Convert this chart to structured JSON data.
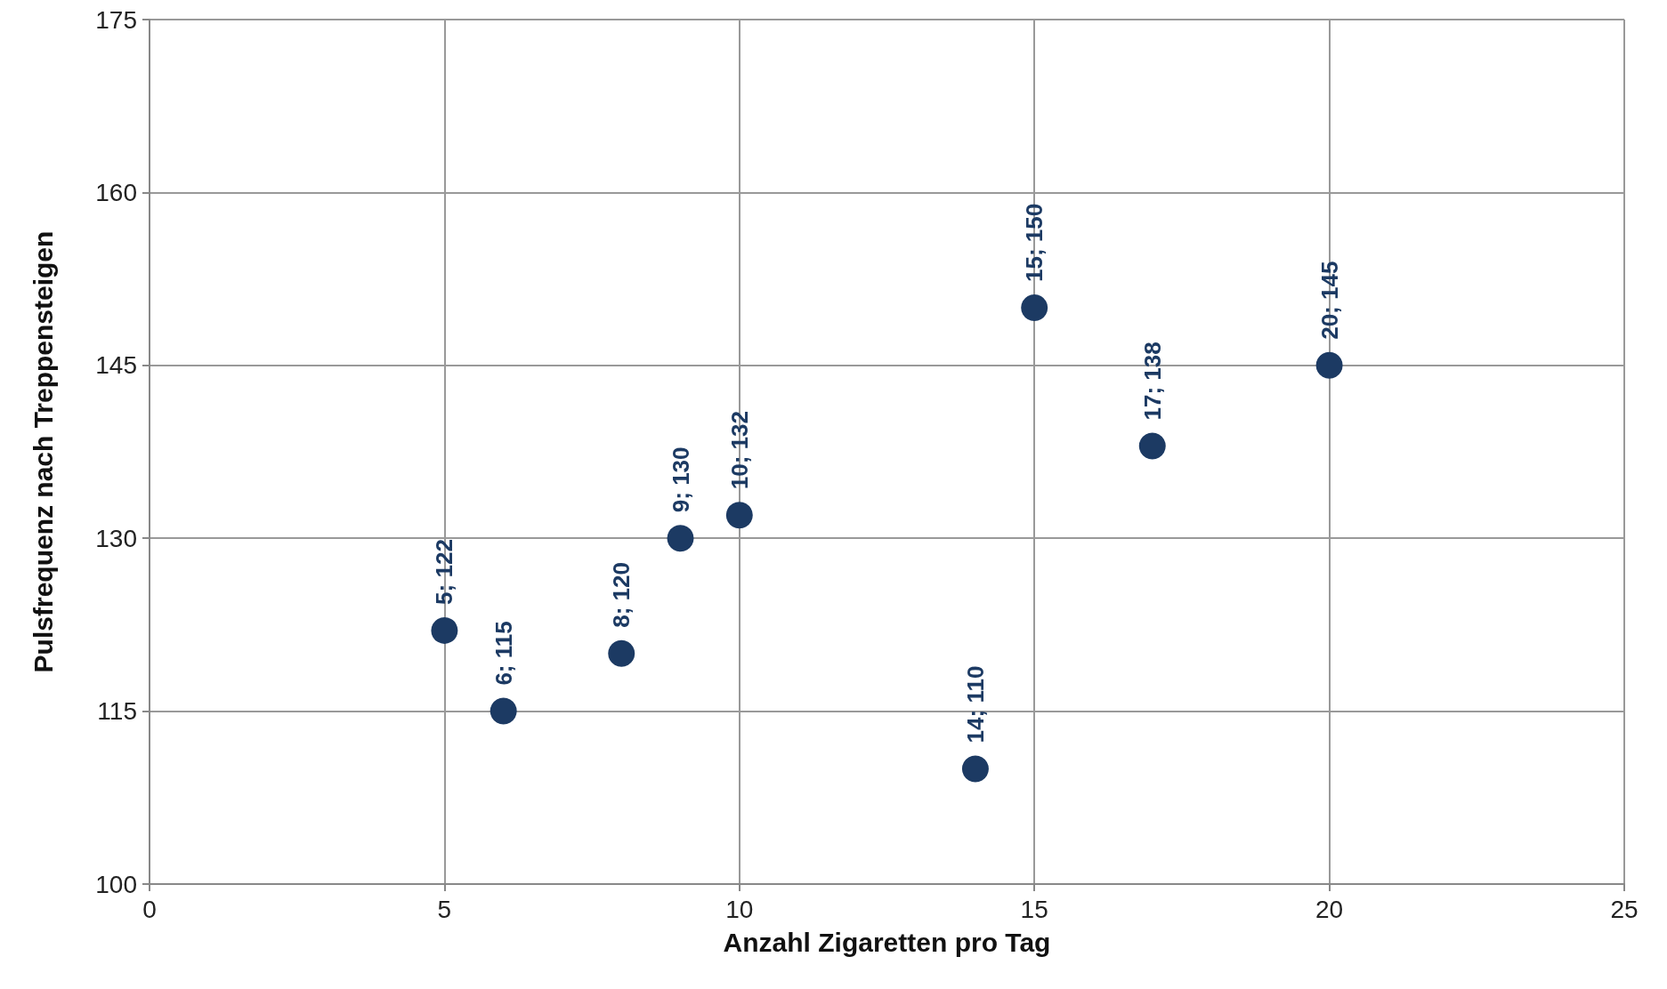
{
  "chart_data": {
    "type": "scatter",
    "xlabel": "Anzahl Zigaretten pro Tag",
    "ylabel": "Pulsfrequenz nach Treppensteigen",
    "x": [
      5,
      6,
      8,
      9,
      10,
      14,
      15,
      17,
      20
    ],
    "series": [
      {
        "color": "#1c3a63",
        "values": [
          122,
          115,
          120,
          130,
          132,
          110,
          150,
          138,
          145
        ],
        "value_labels": [
          "5; 122",
          "6; 115",
          "8; 120",
          "9; 130",
          "10; 132",
          "14; 110",
          "15; 150",
          "17; 138",
          "20; 145"
        ]
      }
    ],
    "xlim": [
      0,
      25
    ],
    "xticks": [
      0,
      5,
      10,
      15,
      20,
      25
    ],
    "ylim": [
      100,
      175
    ],
    "yticks": [
      100,
      115,
      130,
      145,
      160,
      175
    ],
    "grid": true,
    "marker": "circle"
  }
}
